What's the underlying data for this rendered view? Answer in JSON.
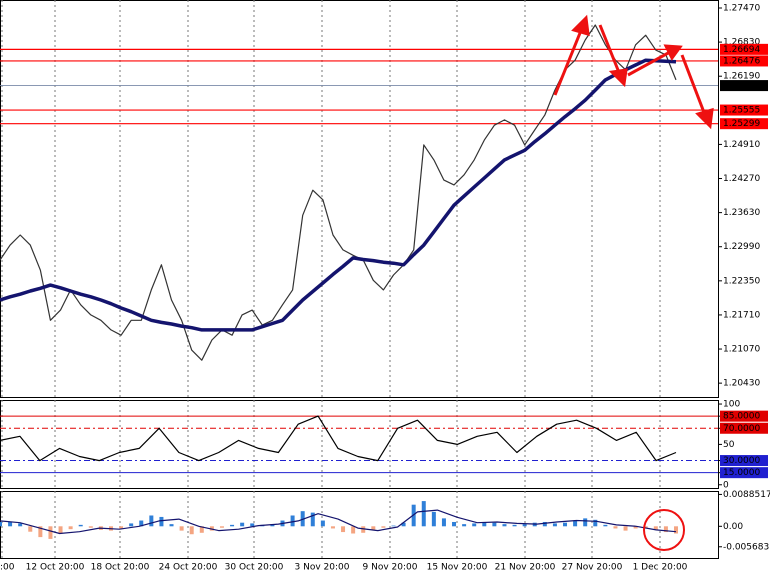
{
  "chart_data": [
    {
      "type": "line",
      "ylim": [
        1.2017,
        1.2762
      ],
      "yticks": [
        {
          "value": 1.2747,
          "label": "1.27470"
        },
        {
          "value": 1.2683,
          "label": "1.26830"
        },
        {
          "value": 1.2619,
          "label": "1.26190"
        },
        {
          "value": 1.2491,
          "label": "1.24910"
        },
        {
          "value": 1.2427,
          "label": "1.24270"
        },
        {
          "value": 1.2363,
          "label": "1.23630"
        },
        {
          "value": 1.2299,
          "label": "1.22990"
        },
        {
          "value": 1.2235,
          "label": "1.22350"
        },
        {
          "value": 1.2171,
          "label": "1.21710"
        },
        {
          "value": 1.2107,
          "label": "1.21070"
        },
        {
          "value": 1.2043,
          "label": "1.20430"
        }
      ],
      "levels": [
        {
          "value": 1.26694,
          "color": "#ff0000"
        },
        {
          "value": 1.26476,
          "color": "#ff0000"
        },
        {
          "value": 1.26014,
          "color": "#000000"
        },
        {
          "value": 1.25555,
          "color": "#ff0000"
        },
        {
          "value": 1.25299,
          "color": "#ff0000"
        }
      ],
      "series": [
        {
          "type": "line",
          "color": "#333333",
          "values": [
            1.2274,
            1.2302,
            1.2321,
            1.2302,
            1.2255,
            1.2161,
            1.218,
            1.2218,
            1.219,
            1.2171,
            1.2161,
            1.2143,
            1.2133,
            1.2161,
            1.2161,
            1.2218,
            1.2265,
            1.2199,
            1.2161,
            1.2105,
            1.2086,
            1.2124,
            1.2143,
            1.2133,
            1.2171,
            1.218,
            1.2152,
            1.2161,
            1.219,
            1.2218,
            1.2358,
            1.2405,
            1.2387,
            1.2321,
            1.2293,
            1.2283,
            1.2274,
            1.2236,
            1.2218,
            1.2246,
            1.2265,
            1.2293,
            1.249,
            1.2462,
            1.2424,
            1.2415,
            1.2434,
            1.2462,
            1.2499,
            1.2527,
            1.2537,
            1.2527,
            1.249,
            1.2518,
            1.2546,
            1.2593,
            1.2631,
            1.2649,
            1.2687,
            1.2715,
            1.2678,
            1.2649,
            1.2631,
            1.2678,
            1.2696,
            1.2668,
            1.2659,
            1.2612
          ]
        },
        {
          "type": "line",
          "color": "#14146e",
          "width": 3.5,
          "values": [
            1.2199,
            1.2205,
            1.221,
            1.2216,
            1.2221,
            1.2227,
            1.2222,
            1.2216,
            1.221,
            1.2205,
            1.2199,
            1.2192,
            1.2184,
            1.2177,
            1.2169,
            1.2161,
            1.2157,
            1.2154,
            1.215,
            1.2147,
            1.2143,
            1.2143,
            1.2143,
            1.2143,
            1.2143,
            1.2143,
            1.2149,
            1.2155,
            1.2161,
            1.218,
            1.2199,
            1.2215,
            1.2231,
            1.2247,
            1.2262,
            1.2278,
            1.2275,
            1.2273,
            1.227,
            1.2268,
            1.2265,
            1.2284,
            1.2302,
            1.2327,
            1.2352,
            1.2377,
            1.2394,
            1.2411,
            1.2428,
            1.2445,
            1.2462,
            1.2471,
            1.248,
            1.2496,
            1.2511,
            1.2527,
            1.2543,
            1.2558,
            1.2574,
            1.2593,
            1.2612,
            1.2622,
            1.2631,
            1.264,
            1.2649,
            1.2648,
            1.2647,
            1.2646
          ]
        }
      ]
    },
    {
      "type": "line",
      "ylim": [
        -4,
        105
      ],
      "yticks": [
        100,
        {
          "value": 85,
          "label": "85.0000",
          "color": "#e00000"
        },
        {
          "value": 70,
          "label": "70.0000",
          "color": "#e00000"
        },
        50,
        {
          "value": 30,
          "label": "30.0000",
          "color": "#2020d0"
        },
        {
          "value": 15,
          "label": "15.0000",
          "color": "#2020d0"
        },
        0
      ],
      "series": [
        {
          "type": "line",
          "color": "#000000",
          "values": [
            55,
            60,
            30,
            45,
            35,
            30,
            40,
            45,
            70,
            40,
            30,
            40,
            55,
            45,
            40,
            75,
            85,
            45,
            35,
            30,
            70,
            80,
            55,
            50,
            60,
            65,
            40,
            60,
            75,
            80,
            70,
            55,
            65,
            30,
            40
          ]
        }
      ]
    },
    {
      "type": "bar",
      "ylim": [
        -0.0088,
        0.0098
      ],
      "yticks": [
        0.0088517,
        {
          "value": 0,
          "label": "0.00"
        },
        -0.005683
      ],
      "pos_color": "#2f7fd8",
      "neg_color": "#f4a582",
      "series": [
        {
          "type": "bar",
          "values": [
            0.0012,
            0.0013,
            0.0008,
            -0.0015,
            -0.003,
            -0.0035,
            -0.002,
            -0.0008,
            0.0004,
            -0.0004,
            -0.001,
            -0.0012,
            -0.0006,
            0.0008,
            0.0016,
            0.003,
            0.0026,
            0.0006,
            -0.0012,
            -0.0022,
            -0.0018,
            -0.0012,
            -0.0004,
            0.0004,
            0.001,
            0.0008,
            0.0004,
            0.0006,
            0.0016,
            0.003,
            0.0042,
            0.0038,
            0.0016,
            -0.0006,
            -0.0016,
            -0.002,
            -0.0018,
            -0.001,
            -0.0004,
            0.0002,
            0.001,
            0.006,
            0.007,
            0.004,
            0.0022,
            0.0012,
            0.0006,
            0.0008,
            0.0012,
            0.001,
            0.0006,
            0.0004,
            0.0006,
            0.001,
            0.0012,
            0.0008,
            0.001,
            0.0016,
            0.0022,
            0.0018,
            0.0004,
            -0.0006,
            -0.0012,
            -0.0006,
            -0.0004,
            -0.001,
            -0.0016,
            -0.002
          ]
        },
        {
          "type": "line",
          "color": "#14146e",
          "values": [
            0.0015,
            0.001,
            -0.0005,
            -0.002,
            -0.0015,
            -0.0005,
            -0.0008,
            0,
            0.0015,
            0.002,
            0,
            -0.0012,
            -0.0008,
            0.0002,
            0.0006,
            0.0015,
            0.0035,
            0.002,
            -0.0005,
            -0.0012,
            -0.0002,
            0.004,
            0.0045,
            0.0025,
            0.001,
            0.0012,
            0.0008,
            0.0006,
            0.0012,
            0.0016,
            0.0014,
            0.0004,
            0,
            -0.001,
            -0.0015
          ]
        }
      ],
      "xtick_labels": [
        ":00",
        "12 Oct 20:00",
        "18 Oct 20:00",
        "24 Oct 20:00",
        "30 Oct 20:00",
        "3 Nov 20:00",
        "9 Nov 20:00",
        "15 Nov 20:00",
        "21 Nov 20:00",
        "27 Nov 20:00",
        "1 Dec 20:00"
      ]
    }
  ]
}
